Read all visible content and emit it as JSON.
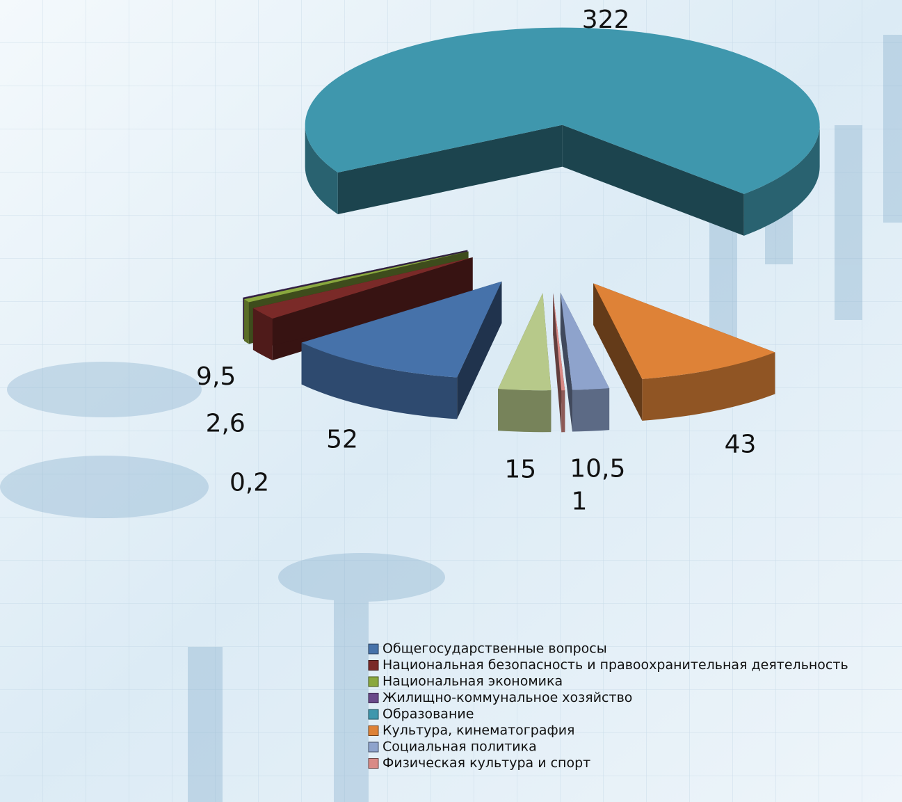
{
  "chart_data": {
    "type": "pie3d",
    "categories": [
      "Общегосударственные вопросы",
      "Национальная безопасность и правоохранительная деятельность",
      "Национальная экономика",
      "Жилищно-коммунальное хозяйство",
      "Образование",
      "Культура, кинематография",
      "Социальная политика",
      "Физическая культура и спорт",
      null
    ],
    "values": [
      52,
      9.5,
      2.6,
      0.2,
      322,
      43,
      10.5,
      1,
      15
    ],
    "value_labels": [
      "52",
      "9,5",
      "2,6",
      "0,2",
      "322",
      "43",
      "10,5",
      "1",
      "15"
    ],
    "colors": [
      "#4672aa",
      "#7a2a28",
      "#8aa83e",
      "#6a4a8a",
      "#3f97ad",
      "#de8237",
      "#8ea3cc",
      "#d98a86",
      "#b7c98a"
    ],
    "start_angle": 190,
    "legend": "bottom-right"
  }
}
